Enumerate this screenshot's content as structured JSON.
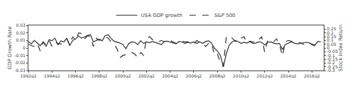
{
  "chart_data": {
    "type": "line",
    "ylabel": "GDP Growth Rate",
    "y2label": "Stock Index Return",
    "x": [
      1992.25,
      1992.5,
      1992.75,
      1993,
      1993.25,
      1993.5,
      1993.75,
      1994,
      1994.25,
      1994.5,
      1994.75,
      1995,
      1995.25,
      1995.5,
      1995.75,
      1996,
      1996.25,
      1996.5,
      1996.75,
      1997,
      1997.25,
      1997.5,
      1997.75,
      1998,
      1998.25,
      1998.5,
      1998.75,
      1999,
      1999.25,
      1999.5,
      1999.75,
      2000,
      2000.25,
      2000.5,
      2000.75,
      2001,
      2001.25,
      2001.5,
      2001.75,
      2002,
      2002.25,
      2002.5,
      2002.75,
      2003,
      2003.25,
      2003.5,
      2003.75,
      2004,
      2004.25,
      2004.5,
      2004.75,
      2005,
      2005.25,
      2005.5,
      2005.75,
      2006,
      2006.25,
      2006.5,
      2006.75,
      2007,
      2007.25,
      2007.5,
      2007.75,
      2008,
      2008.25,
      2008.5,
      2008.75,
      2009,
      2009.25,
      2009.5,
      2009.75,
      2010,
      2010.25,
      2010.5,
      2010.75,
      2011,
      2011.25,
      2011.5,
      2011.75,
      2012,
      2012.25,
      2012.5,
      2012.75,
      2013,
      2013.25,
      2013.5,
      2013.75,
      2014,
      2014.25,
      2014.5,
      2014.75,
      2015,
      2015.25,
      2015.5,
      2015.75,
      2016,
      2016.25,
      2016.5,
      2016.75,
      2017
    ],
    "xlim": [
      1992.25,
      2017.25
    ],
    "xticks": [
      {
        "value": 1992.25,
        "label": "1992q2"
      },
      {
        "value": 1994.25,
        "label": "1994q2"
      },
      {
        "value": 1996.25,
        "label": "1996q2"
      },
      {
        "value": 1998.25,
        "label": "1998q2"
      },
      {
        "value": 2000.25,
        "label": "2000q2"
      },
      {
        "value": 2002.25,
        "label": "2002q2"
      },
      {
        "value": 2004.25,
        "label": "2004q2"
      },
      {
        "value": 2006.25,
        "label": "2006q2"
      },
      {
        "value": 2008.25,
        "label": "2008q2"
      },
      {
        "value": 2010.25,
        "label": "2010q2"
      },
      {
        "value": 2012.25,
        "label": "2012q2"
      },
      {
        "value": 2014.25,
        "label": "2014q2"
      },
      {
        "value": 2016.25,
        "label": "2016q2"
      }
    ],
    "ylim": [
      -0.03,
      0.03
    ],
    "yticks": [
      -0.03,
      -0.02,
      -0.01,
      0,
      0.01,
      0.02,
      0.03
    ],
    "y2lim": [
      -0.3,
      0.3
    ],
    "y2ticks": [
      -0.3,
      -0.25,
      -0.2,
      -0.15,
      -0.1,
      -0.05,
      0,
      0.05,
      0.1,
      0.15,
      0.2,
      0.25
    ],
    "grid": false,
    "legend": "upper center",
    "series": [
      {
        "name": "USA GDP growth",
        "color": "#303030",
        "line_style": "solid",
        "values": [
          0.0085,
          0.0055,
          0.01,
          0.006,
          0.003,
          0.008,
          0.002,
          0.011,
          0.0095,
          0.013,
          0.004,
          0.0095,
          0.008,
          0.013,
          0.003,
          0.01,
          0.012,
          0.016,
          0.013,
          0.0145,
          0.0165,
          0.0175,
          0.008,
          0.01,
          0.0115,
          0.0095,
          0.0165,
          0.0175,
          0.0125,
          0.009,
          0.008,
          0.0065,
          0.0045,
          -0.001,
          0.006,
          0.008,
          0.0075,
          0.0045,
          0.0095,
          0.006,
          0.008,
          0.007,
          0.0085,
          0.0075,
          0.006,
          0.0045,
          0.0085,
          0.009,
          0.008,
          0.007,
          0.0055,
          0.0085,
          0.008,
          0.006,
          0.0075,
          0.0065,
          0.008,
          0.006,
          0.008,
          0.006,
          0.0085,
          0.0095,
          0.0065,
          -0.0005,
          -0.004,
          -0.01,
          -0.025,
          -0.008,
          0.004,
          0.008,
          0.01,
          0.0085,
          0.006,
          0.0075,
          0.0065,
          0.0085,
          0.006,
          0.0065,
          0.008,
          0.0075,
          0.004,
          0.0075,
          0.008,
          0.0065,
          0.0055,
          0.006,
          -0.002,
          0.0045,
          0.006,
          0.008,
          0.0065,
          0.0055,
          0.006,
          0.0065,
          0.0075,
          0.007,
          0.005,
          0.004,
          0.0085,
          0.008
        ]
      },
      {
        "name": "S&P 500",
        "color": "#303030",
        "line_style": "dashed",
        "axis": "y2",
        "values": [
          0.05,
          0.03,
          0.02,
          0.06,
          -0.04,
          0.08,
          0.04,
          0.1,
          0.02,
          0.08,
          0.06,
          0.05,
          0.08,
          0.12,
          0.04,
          0.15,
          0.1,
          0.2,
          0.19,
          0.12,
          0.16,
          0.15,
          0.02,
          0.13,
          0.1,
          0.12,
          0.15,
          0.13,
          0.08,
          0.05,
          -0.01,
          -0.13,
          -0.1,
          -0.09,
          -0.07,
          -0.06,
          -0.08,
          -0.13,
          -0.06,
          -0.1,
          0.13,
          0.15,
          0.11,
          0.09,
          0.08,
          0.1,
          0.08,
          0.09,
          0.1,
          0.08,
          0.06,
          0.07,
          0.09,
          0.08,
          0.08,
          0.06,
          0.05,
          0.1,
          0.07,
          0.06,
          0.02,
          0.06,
          0.07,
          -0.1,
          -0.08,
          -0.2,
          -0.25,
          0.15,
          0.16,
          0.13,
          0.09,
          0.08,
          0.13,
          0.15,
          0.06,
          0.09,
          0.08,
          0.07,
          0.11,
          0.15,
          -0.06,
          0.1,
          0.09,
          0.08,
          0.12,
          0.05,
          -0.11,
          0.08,
          0.1,
          0.09,
          0.08,
          0.06,
          0.07,
          0.05,
          0.06,
          0.08,
          0.04,
          0.03,
          0.05,
          0.06
        ]
      }
    ]
  }
}
